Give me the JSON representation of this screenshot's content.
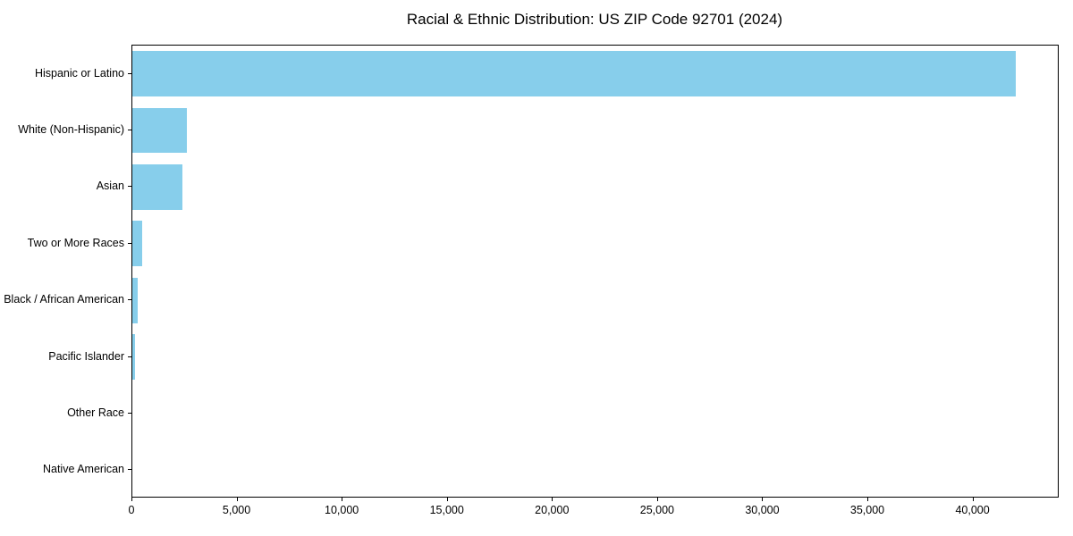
{
  "chart_data": {
    "type": "bar",
    "orientation": "horizontal",
    "title": "Racial & Ethnic Distribution: US ZIP Code 92701 (2024)",
    "categories": [
      "Hispanic or Latino",
      "White (Non-Hispanic)",
      "Asian",
      "Two or More Races",
      "Black / African American",
      "Pacific Islander",
      "Other Race",
      "Native American"
    ],
    "values": [
      42000,
      2600,
      2400,
      460,
      270,
      130,
      15,
      10
    ],
    "xlabel": "",
    "ylabel": "",
    "xlim": [
      0,
      44100
    ],
    "xticks": [
      0,
      5000,
      10000,
      15000,
      20000,
      25000,
      30000,
      35000,
      40000
    ],
    "xtick_labels": [
      "0",
      "5,000",
      "10,000",
      "15,000",
      "20,000",
      "25,000",
      "30,000",
      "35,000",
      "40,000"
    ],
    "bar_color": "#87CEEB",
    "grid": false,
    "legend": null
  }
}
